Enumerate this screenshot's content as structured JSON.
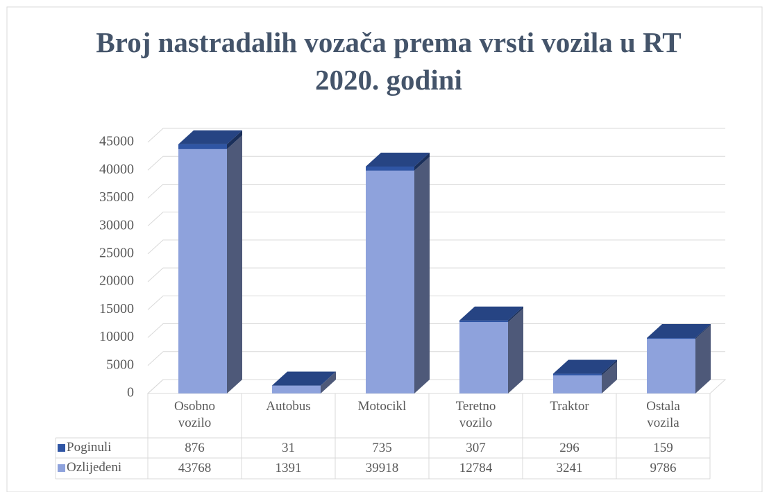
{
  "chart_data": {
    "type": "bar3d_stacked",
    "title": "Broj nastradalih vozača prema vrsti vozila u RT 2020. godini",
    "categories": [
      "Osobno vozilo",
      "Autobus",
      "Motocikl",
      "Teretno vozilo",
      "Traktor",
      "Ostala vozila"
    ],
    "series": [
      {
        "name": "Poginuli",
        "color": "#2f55a4",
        "values": [
          876,
          31,
          735,
          307,
          296,
          159
        ]
      },
      {
        "name": "Ozlijeđeni",
        "color": "#8ea2dc",
        "values": [
          43768,
          1391,
          39918,
          12784,
          3241,
          9786
        ]
      }
    ],
    "ylim": [
      0,
      45000
    ],
    "yticks": [
      0,
      5000,
      10000,
      15000,
      20000,
      25000,
      30000,
      35000,
      40000,
      45000
    ],
    "grid": true
  }
}
